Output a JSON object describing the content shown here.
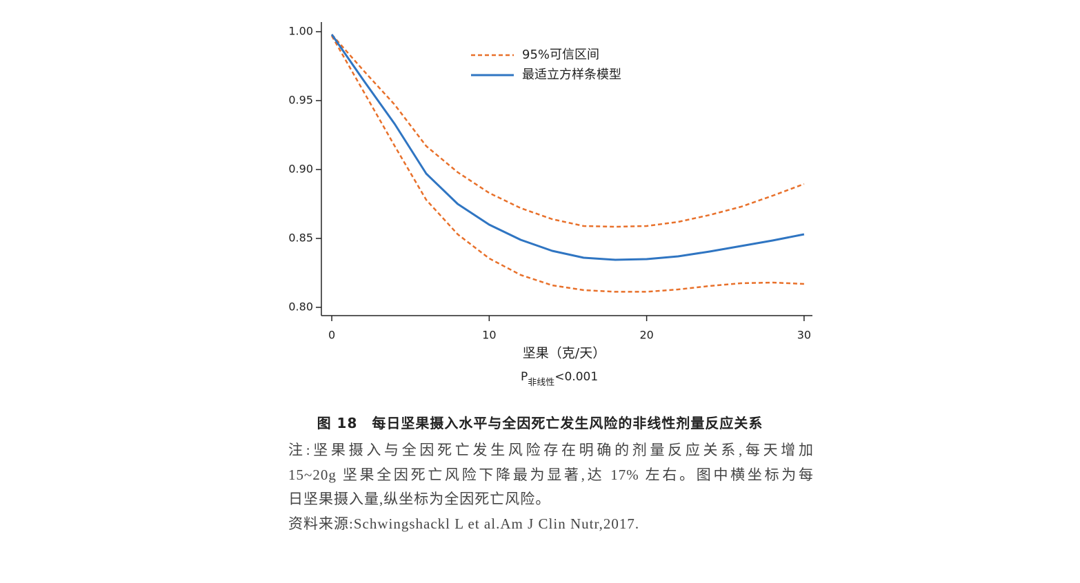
{
  "chart_data": {
    "type": "line",
    "x": [
      0,
      2,
      4,
      6,
      8,
      10,
      12,
      14,
      16,
      18,
      20,
      22,
      24,
      26,
      28,
      30
    ],
    "series": [
      {
        "name": "95%可信区间",
        "color": "#e8702a",
        "dashed": true,
        "upper": [
          0.998,
          0.972,
          0.947,
          0.917,
          0.898,
          0.883,
          0.872,
          0.864,
          0.859,
          0.8585,
          0.859,
          0.862,
          0.867,
          0.873,
          0.881,
          0.8895
        ],
        "lower": [
          0.997,
          0.957,
          0.917,
          0.878,
          0.853,
          0.8355,
          0.8235,
          0.816,
          0.8125,
          0.8113,
          0.8113,
          0.813,
          0.8155,
          0.8175,
          0.818,
          0.817
        ]
      },
      {
        "name": "最适立方样条模型",
        "color": "#2f75c2",
        "dashed": false,
        "values": [
          0.998,
          0.965,
          0.933,
          0.897,
          0.875,
          0.86,
          0.849,
          0.841,
          0.836,
          0.8345,
          0.835,
          0.837,
          0.8405,
          0.8445,
          0.8485,
          0.853
        ]
      }
    ],
    "xlim": [
      -0.66,
      30.53
    ],
    "xticks": [
      0,
      10,
      20,
      30
    ],
    "ylim": [
      0.794,
      1.007
    ],
    "yticks": [
      {
        "value": 0.8,
        "label": "0.80"
      },
      0.85,
      {
        "value": 0.9,
        "label": "0.90"
      },
      0.95,
      {
        "value": 1,
        "label": "1.00"
      }
    ],
    "x_label": "坚果（克/天）",
    "annotation": {
      "main": "P",
      "sub": "非线性",
      "rest": "<0.001"
    }
  },
  "caption": {
    "title": "图 18　每日坚果摄入水平与全因死亡发生风险的非线性剂量反应关系",
    "notes": [
      "注:坚果摄入与全因死亡发生风险存在明确的剂量反应关系,每天增加",
      "15~20g 坚果全因死亡风险下降最为显著,达 17% 左右。图中横坐标为每",
      "日坚果摄入量,纵坐标为全因死亡风险。"
    ],
    "source": "资料来源:Schwingshackl L et al.Am J Clin Nutr,2017."
  }
}
